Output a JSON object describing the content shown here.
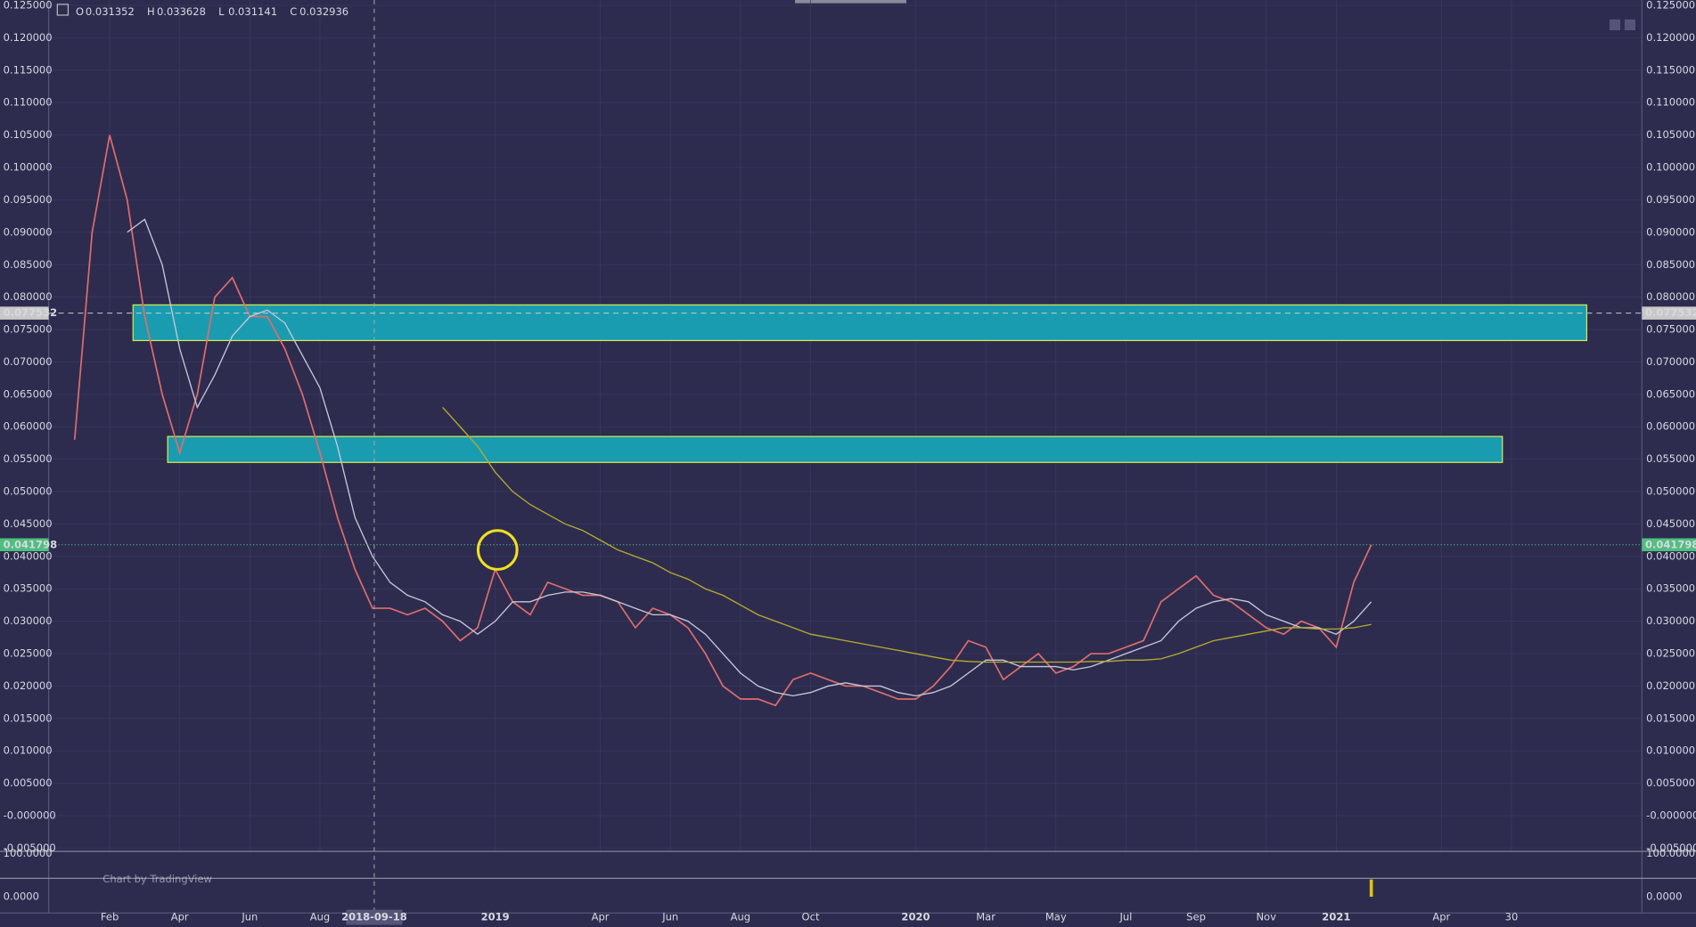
{
  "chart_data": [
    {
      "type": "line",
      "ohlc": [
        {
          "label": "O",
          "value": 0.031352
        },
        {
          "label": "H",
          "value": 0.033628
        },
        {
          "label": "L",
          "value": 0.031141
        },
        {
          "label": "C",
          "value": 0.032936
        }
      ],
      "categories": [
        null,
        null,
        "Feb",
        null,
        null,
        null,
        "Apr",
        null,
        null,
        null,
        "Jun",
        null,
        null,
        null,
        "Aug",
        null,
        null,
        null,
        null,
        null,
        null,
        null,
        null,
        null,
        "2019",
        null,
        null,
        null,
        null,
        null,
        "Apr",
        null,
        null,
        null,
        "Jun",
        null,
        null,
        null,
        "Aug",
        null,
        null,
        null,
        "Oct",
        null,
        null,
        null,
        null,
        null,
        "2020",
        null,
        null,
        null,
        "Mar",
        null,
        null,
        null,
        "May",
        null,
        null,
        null,
        "Jul",
        null,
        null,
        null,
        "Sep",
        null,
        null,
        null,
        "Nov",
        null,
        null,
        null,
        "2021",
        null,
        null,
        null,
        null,
        null,
        "Apr",
        null,
        null,
        null,
        "30"
      ],
      "series": [
        {
          "color": "#e06c6c",
          "values": [
            0.058,
            0.09,
            0.105,
            0.095,
            0.077,
            0.065,
            0.056,
            0.065,
            0.08,
            0.083,
            0.077,
            0.077,
            0.072,
            0.065,
            0.056,
            0.046,
            0.038,
            0.032,
            0.032,
            0.031,
            0.032,
            0.03,
            0.027,
            0.029,
            0.038,
            0.033,
            0.031,
            0.036,
            0.035,
            0.034,
            0.034,
            0.033,
            0.029,
            0.032,
            0.031,
            0.029,
            0.025,
            0.02,
            0.018,
            0.018,
            0.017,
            0.021,
            0.022,
            0.021,
            0.02,
            0.02,
            0.019,
            0.018,
            0.018,
            0.02,
            0.023,
            0.027,
            0.026,
            0.021,
            0.023,
            0.025,
            0.022,
            0.023,
            0.025,
            0.025,
            0.026,
            0.027,
            0.033,
            0.035,
            0.037,
            0.034,
            0.033,
            0.031,
            0.029,
            0.028,
            0.03,
            0.029,
            0.026,
            0.036,
            0.0418,
            null,
            null,
            null,
            null,
            null,
            null,
            null,
            null
          ]
        },
        {
          "color": "#c8c8d8",
          "values": [
            null,
            null,
            null,
            0.09,
            0.092,
            0.085,
            0.072,
            0.063,
            0.068,
            0.074,
            0.077,
            0.078,
            0.076,
            0.071,
            0.066,
            0.057,
            0.046,
            0.04,
            0.036,
            0.034,
            0.033,
            0.031,
            0.03,
            0.028,
            0.03,
            0.033,
            0.033,
            0.034,
            0.0345,
            0.0345,
            0.034,
            0.033,
            0.032,
            0.031,
            0.031,
            0.03,
            0.028,
            0.025,
            0.022,
            0.02,
            0.019,
            0.0185,
            0.019,
            0.02,
            0.0205,
            0.02,
            0.02,
            0.019,
            0.0185,
            0.019,
            0.02,
            0.022,
            0.024,
            0.024,
            0.023,
            0.023,
            0.023,
            0.0225,
            0.023,
            0.024,
            0.025,
            0.026,
            0.027,
            0.03,
            0.032,
            0.033,
            0.0335,
            0.033,
            0.031,
            0.03,
            0.029,
            0.029,
            0.028,
            0.03,
            0.033,
            null,
            null,
            null,
            null,
            null,
            null,
            null,
            null
          ]
        },
        {
          "color": "#b8ac2a",
          "values": [
            null,
            null,
            null,
            null,
            null,
            null,
            null,
            null,
            null,
            null,
            null,
            null,
            null,
            null,
            null,
            null,
            null,
            null,
            null,
            null,
            null,
            0.063,
            0.06,
            0.057,
            0.053,
            0.05,
            0.048,
            0.0465,
            0.045,
            0.044,
            0.0425,
            0.041,
            0.04,
            0.039,
            0.0375,
            0.0365,
            0.035,
            0.034,
            0.0325,
            0.031,
            0.03,
            0.029,
            0.028,
            0.0275,
            0.027,
            0.0265,
            0.026,
            0.0255,
            0.025,
            0.0245,
            0.024,
            0.0238,
            0.0237,
            0.0237,
            0.0237,
            0.0237,
            0.0237,
            0.0237,
            0.0238,
            0.0238,
            0.024,
            0.024,
            0.0242,
            0.025,
            0.026,
            0.027,
            0.0275,
            0.028,
            0.0285,
            0.029,
            0.029,
            0.0288,
            0.0288,
            0.029,
            0.0295,
            null,
            null,
            null,
            null,
            null,
            null,
            null,
            null
          ]
        }
      ],
      "ylim": [
        -0.0055,
        0.125833
      ],
      "yticks": [
        {
          "value": 0.125,
          "label": "0.125000"
        },
        {
          "value": 0.12,
          "label": "0.120000"
        },
        {
          "value": 0.115,
          "label": "0.115000"
        },
        {
          "value": 0.11,
          "label": "0.110000"
        },
        {
          "value": 0.105,
          "label": "0.105000"
        },
        {
          "value": 0.1,
          "label": "0.100000"
        },
        {
          "value": 0.095,
          "label": "0.095000"
        },
        {
          "value": 0.09,
          "label": "0.090000"
        },
        {
          "value": 0.085,
          "label": "0.085000"
        },
        {
          "value": 0.08,
          "label": "0.080000"
        },
        {
          "value": 0.075,
          "label": "0.075000"
        },
        {
          "value": 0.07,
          "label": "0.070000"
        },
        {
          "value": 0.065,
          "label": "0.065000"
        },
        {
          "value": 0.06,
          "label": "0.060000"
        },
        {
          "value": 0.055,
          "label": "0.055000"
        },
        {
          "value": 0.05,
          "label": "0.050000"
        },
        {
          "value": 0.045,
          "label": "0.045000"
        },
        {
          "value": 0.04,
          "label": "0.040000"
        },
        {
          "value": 0.035,
          "label": "0.035000"
        },
        {
          "value": 0.03,
          "label": "0.030000"
        },
        {
          "value": 0.025,
          "label": "0.025000"
        },
        {
          "value": 0.02,
          "label": "0.020000"
        },
        {
          "value": 0.015,
          "label": "0.015000"
        },
        {
          "value": 0.01,
          "label": "0.010000"
        },
        {
          "value": 0.005,
          "label": "0.005000"
        },
        {
          "value": 0,
          "label": "-0.000000"
        },
        {
          "value": -0.005,
          "label": "-0.005000"
        }
      ],
      "grid": true,
      "zones": [
        {
          "ylim": [
            0.0733,
            0.0788
          ],
          "color": "#1a9cb0"
        },
        {
          "ylim": [
            0.0545,
            0.0585
          ],
          "color": "#1a9cb0"
        }
      ],
      "price_lines": [
        {
          "value": 0.077532,
          "color": "#c8c8c8"
        },
        {
          "value": 0.041798,
          "color": "#4fbf7f"
        }
      ],
      "crosshair_date": "2018-09-18",
      "watermark": "Chart by TradingView"
    },
    {
      "type": "bar",
      "color": "#e0c010",
      "ylim": [
        -37.5,
        105
      ],
      "yticks": [
        {
          "value": 100,
          "label": "100.0000"
        },
        {
          "value": 0,
          "label": "0.0000"
        }
      ],
      "values": [
        null,
        null,
        null,
        null,
        null,
        null,
        null,
        null,
        null,
        null,
        null,
        null,
        null,
        null,
        null,
        null,
        null,
        null,
        null,
        null,
        null,
        null,
        null,
        null,
        null,
        null,
        null,
        null,
        null,
        null,
        null,
        null,
        null,
        null,
        null,
        null,
        null,
        null,
        null,
        null,
        null,
        null,
        null,
        null,
        null,
        null,
        null,
        null,
        null,
        null,
        null,
        null,
        null,
        null,
        null,
        null,
        null,
        null,
        null,
        null,
        null,
        null,
        null,
        null,
        null,
        null,
        null,
        null,
        null,
        null,
        null,
        null,
        null,
        null,
        40,
        null,
        null,
        null,
        null,
        null,
        null,
        null,
        null
      ]
    }
  ]
}
